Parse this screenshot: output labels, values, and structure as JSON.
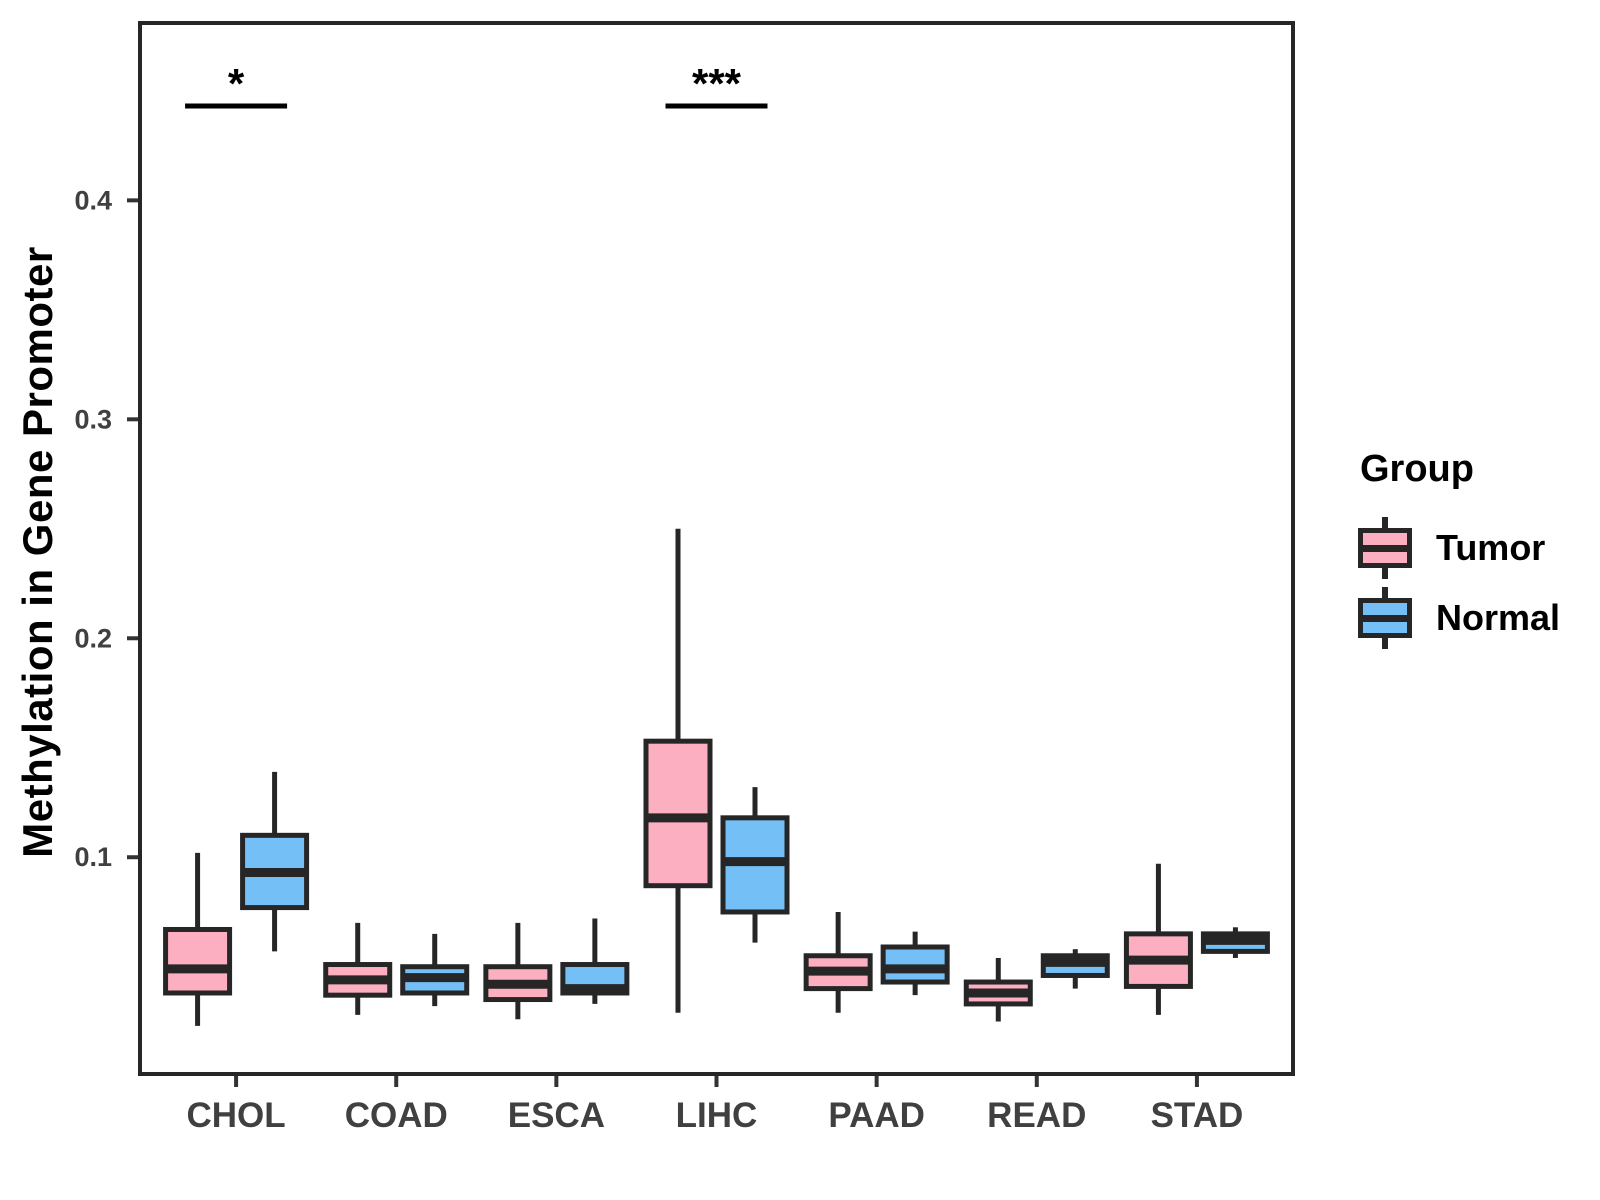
{
  "chart_data": {
    "type": "boxplot",
    "title": "",
    "xlabel": "",
    "ylabel": "Methylation in Gene Promoter",
    "categories": [
      "CHOL",
      "COAD",
      "ESCA",
      "LIHC",
      "PAAD",
      "READ",
      "STAD"
    ],
    "groups": [
      {
        "name": "Tumor",
        "color": "#FCAFC1"
      },
      {
        "name": "Normal",
        "color": "#74BFF5"
      }
    ],
    "stat_keys": [
      "min",
      "q1",
      "median",
      "q3",
      "max"
    ],
    "series": [
      {
        "name": "Tumor",
        "values": [
          [
            0.023,
            0.038,
            0.049,
            0.067,
            0.102
          ],
          [
            0.028,
            0.037,
            0.044,
            0.051,
            0.07
          ],
          [
            0.026,
            0.035,
            0.042,
            0.05,
            0.07
          ],
          [
            0.029,
            0.087,
            0.118,
            0.153,
            0.25
          ],
          [
            0.029,
            0.04,
            0.048,
            0.055,
            0.075
          ],
          [
            0.025,
            0.033,
            0.038,
            0.043,
            0.054
          ],
          [
            0.028,
            0.041,
            0.053,
            0.065,
            0.097
          ]
        ]
      },
      {
        "name": "Normal",
        "values": [
          [
            0.057,
            0.077,
            0.093,
            0.11,
            0.139
          ],
          [
            0.032,
            0.038,
            0.045,
            0.05,
            0.065
          ],
          [
            0.033,
            0.038,
            0.04,
            0.051,
            0.072
          ],
          [
            0.061,
            0.075,
            0.098,
            0.118,
            0.132
          ],
          [
            0.037,
            0.043,
            0.049,
            0.059,
            0.066
          ],
          [
            0.04,
            0.046,
            0.052,
            0.055,
            0.058
          ],
          [
            0.054,
            0.057,
            0.062,
            0.065,
            0.068
          ]
        ]
      }
    ],
    "yticks": [
      "0.1",
      "0.2",
      "0.3",
      "0.4"
    ],
    "ytick_values": [
      0.1,
      0.2,
      0.3,
      0.4
    ],
    "ylim": [
      0.001,
      0.481
    ],
    "grid": false,
    "legend": {
      "title": "Group",
      "position": "right",
      "entries": [
        {
          "label": "Tumor"
        },
        {
          "label": "Normal"
        }
      ]
    },
    "annotations": [
      {
        "category": "CHOL",
        "label": "*"
      },
      {
        "category": "LIHC",
        "label": "***"
      }
    ],
    "stroke_color": "#262626",
    "axis_text_color": "#404040",
    "panel_border_color": "#262626"
  }
}
